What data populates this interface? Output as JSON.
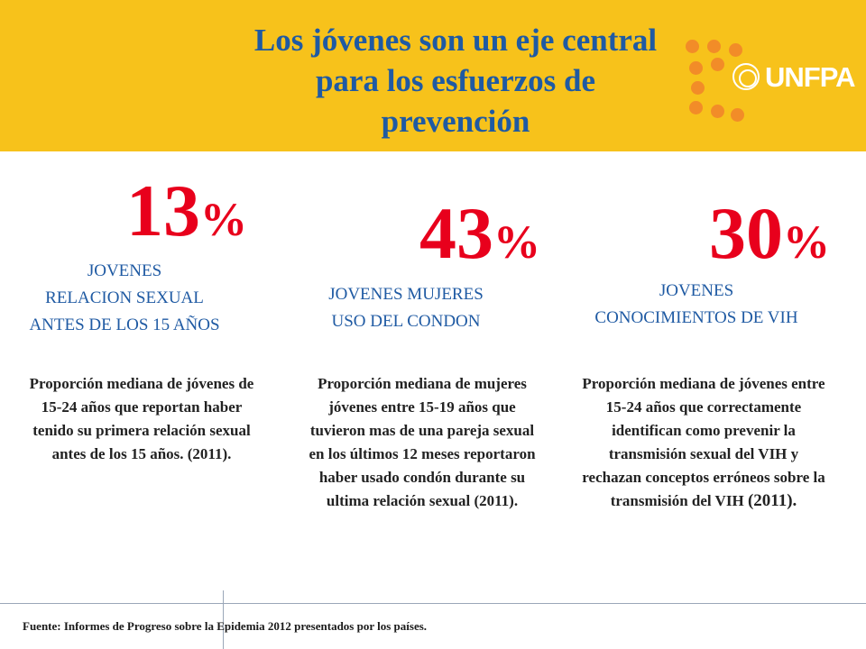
{
  "header": {
    "title_lines": [
      "Los jóvenes son un eje central",
      "para los esfuerzos de",
      "prevención"
    ],
    "logo_text": "UNFPA",
    "band_color": "#f7c21b",
    "title_color": "#1f5aa3"
  },
  "stats": [
    {
      "value": "13",
      "unit": "%",
      "label_lines": [
        "JOVENES",
        "RELACION SEXUAL",
        "ANTES DE LOS 15 AÑOS"
      ],
      "description": "Proporción mediana de jóvenes de 15-24 años que reportan haber tenido su primera relación sexual antes de los 15 años. (2011)."
    },
    {
      "value": "43",
      "unit": "%",
      "label_lines": [
        "JOVENES MUJERES",
        "USO DEL CONDON"
      ],
      "description": "Proporción mediana de mujeres jóvenes entre 15-19 años que tuvieron mas de una pareja sexual en los últimos 12 meses reportaron haber usado condón durante su ultima relación sexual (2011)."
    },
    {
      "value": "30",
      "unit": "%",
      "label_lines": [
        "JOVENES",
        "CONOCIMIENTOS DE VIH"
      ],
      "description": "Proporción mediana de jóvenes entre 15-24 años que correctamente identifican como prevenir la transmisión sexual del VIH y rechazan conceptos erróneos sobre la transmisión del VIH",
      "description_year": "(2011)."
    }
  ],
  "footer": {
    "source": "Fuente: Informes de Progreso sobre la Epidemia 2012 presentados por los países."
  },
  "colors": {
    "stat": "#e8001c",
    "label": "#1f5aa3",
    "logo_dots": "#f28c28"
  },
  "icons": [
    "unfpa-logo-dots",
    "un-emblem-icon"
  ]
}
